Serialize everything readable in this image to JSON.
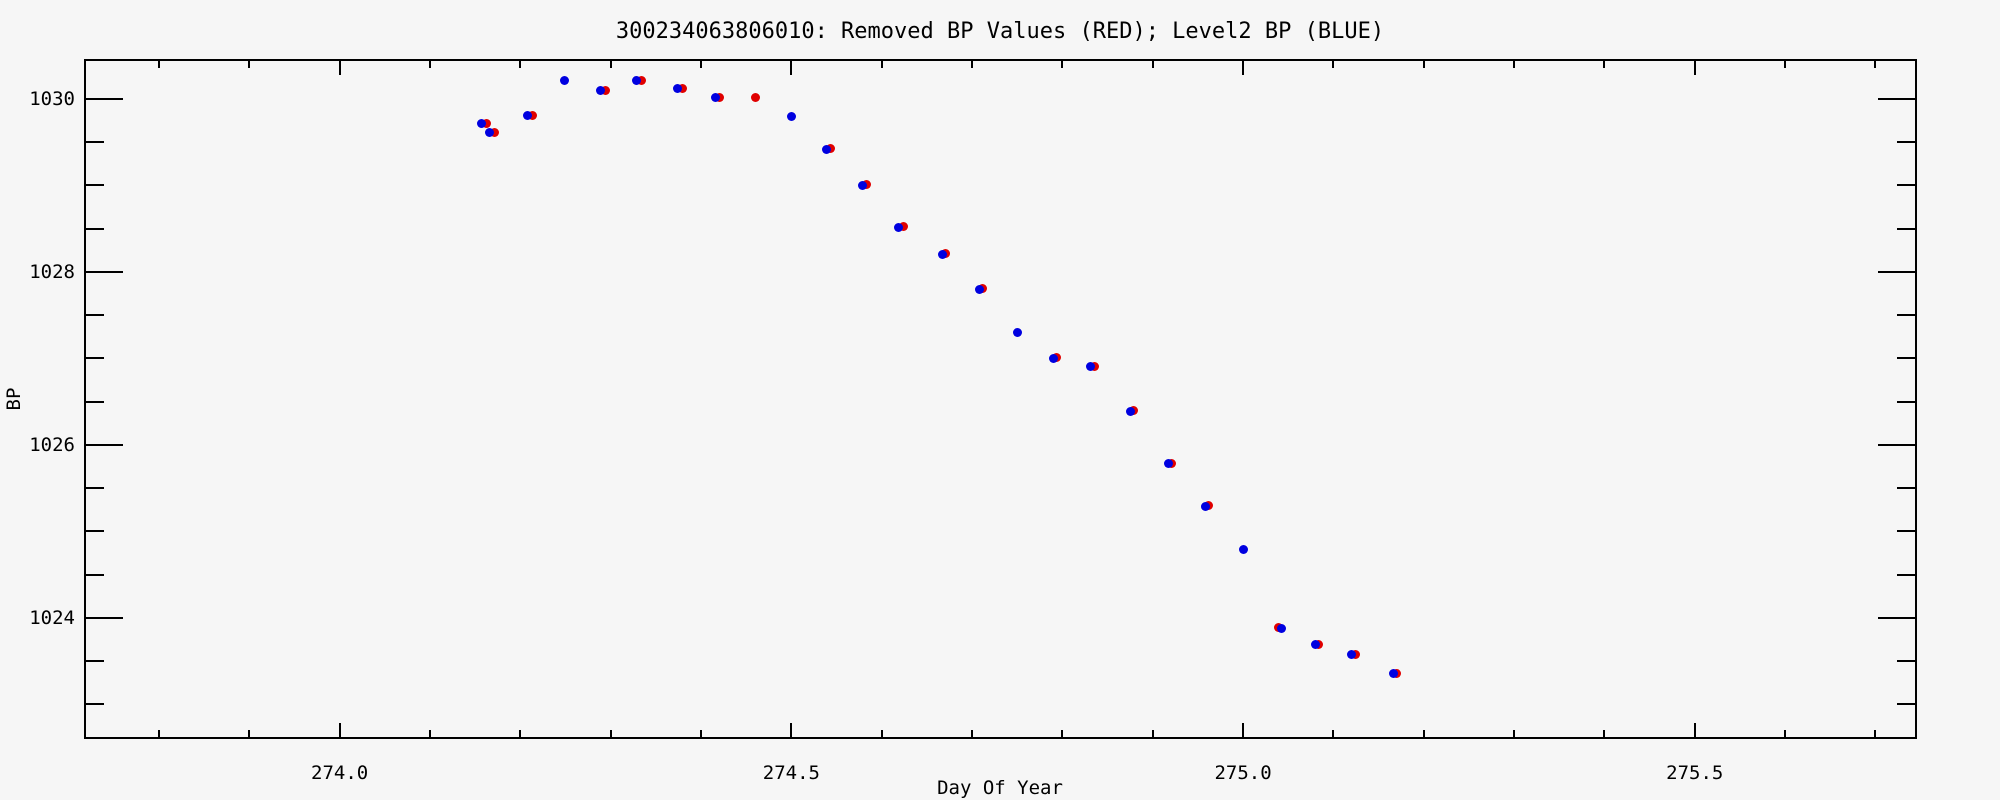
{
  "title": "300234063806010: Removed BP Values (RED); Level2 BP (BLUE)",
  "chart_data": {
    "type": "scatter",
    "title": "300234063806010: Removed BP Values (RED); Level2 BP (BLUE)",
    "xlabel": "Day Of Year",
    "ylabel": "BP",
    "xlim": [
      273.717,
      275.746
    ],
    "ylim": [
      1022.6,
      1030.46
    ],
    "grid": false,
    "legend_position": "encoded-in-title",
    "x_major_ticks": [
      274.0,
      274.5,
      275.0,
      275.5
    ],
    "x_major_tick_labels": [
      "274.0",
      "274.5",
      "275.0",
      "275.5"
    ],
    "x_minor_tick_step": 0.1,
    "y_major_ticks": [
      1024,
      1026,
      1028,
      1030
    ],
    "y_major_tick_labels": [
      "1024",
      "1026",
      "1028",
      "1030"
    ],
    "y_minor_tick_step": 0.5,
    "series": [
      {
        "name": "Removed BP Values (RED)",
        "color": "#e00000",
        "marker": "filled-circle",
        "points": [
          [
            274.162,
            1029.71
          ],
          [
            274.171,
            1029.61
          ],
          [
            274.213,
            1029.81
          ],
          [
            274.294,
            1030.1
          ],
          [
            274.334,
            1030.21
          ],
          [
            274.379,
            1030.12
          ],
          [
            274.421,
            1030.01
          ],
          [
            274.46,
            1030.01
          ],
          [
            274.543,
            1029.42
          ],
          [
            274.583,
            1029.01
          ],
          [
            274.624,
            1028.52
          ],
          [
            274.671,
            1028.21
          ],
          [
            274.712,
            1027.81
          ],
          [
            274.794,
            1027.01
          ],
          [
            274.835,
            1026.91
          ],
          [
            274.879,
            1026.4
          ],
          [
            274.921,
            1025.79
          ],
          [
            274.962,
            1025.3
          ],
          [
            275.039,
            1023.89
          ],
          [
            275.084,
            1023.69
          ],
          [
            275.124,
            1023.58
          ],
          [
            275.17,
            1023.36
          ]
        ]
      },
      {
        "name": "Level2 BP (BLUE)",
        "color": "#0000e0",
        "marker": "filled-circle",
        "points": [
          [
            274.157,
            1029.71
          ],
          [
            274.166,
            1029.61
          ],
          [
            274.208,
            1029.81
          ],
          [
            274.249,
            1030.21
          ],
          [
            274.289,
            1030.1
          ],
          [
            274.329,
            1030.21
          ],
          [
            274.374,
            1030.12
          ],
          [
            274.416,
            1030.01
          ],
          [
            274.5,
            1029.8
          ],
          [
            274.539,
            1029.41
          ],
          [
            274.579,
            1029.0
          ],
          [
            274.619,
            1028.51
          ],
          [
            274.667,
            1028.2
          ],
          [
            274.708,
            1027.8
          ],
          [
            274.75,
            1027.3
          ],
          [
            274.79,
            1027.0
          ],
          [
            274.831,
            1026.9
          ],
          [
            274.875,
            1026.39
          ],
          [
            274.917,
            1025.78
          ],
          [
            274.958,
            1025.29
          ],
          [
            275.0,
            1024.79
          ],
          [
            275.043,
            1023.88
          ],
          [
            275.08,
            1023.69
          ],
          [
            275.12,
            1023.58
          ],
          [
            275.166,
            1023.36
          ]
        ]
      }
    ]
  }
}
